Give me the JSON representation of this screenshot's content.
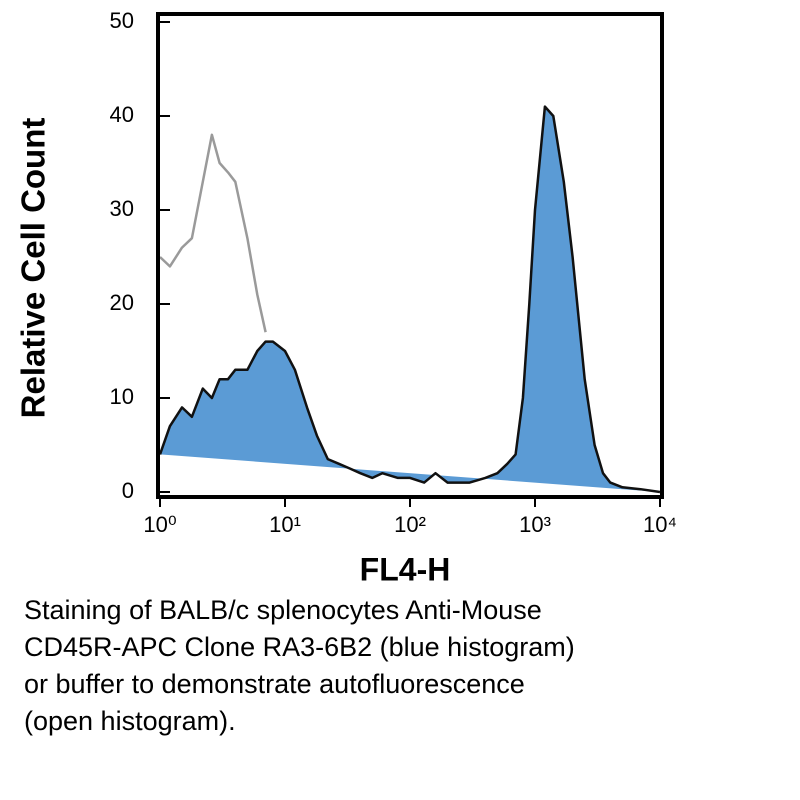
{
  "chart_data": {
    "type": "histogram-overlay",
    "xlabel": "FL4-H",
    "ylabel": "Relative Cell Count",
    "x": [
      1,
      1.2,
      1.5,
      1.8,
      2.2,
      2.6,
      3,
      3.5,
      4,
      5,
      6,
      7,
      8,
      10,
      12,
      15,
      18,
      22,
      27,
      33,
      40,
      50,
      60,
      80,
      100,
      130,
      160,
      200,
      300,
      400,
      500,
      600,
      700,
      800,
      900,
      1000,
      1200,
      1400,
      1700,
      2000,
      2500,
      3000,
      3500,
      4000,
      5000,
      7000,
      10000
    ],
    "series": [
      {
        "color": "#5b9bd5",
        "fill": true,
        "values": [
          4,
          7,
          9,
          8,
          11,
          10,
          12,
          12,
          13,
          13,
          15,
          16,
          16,
          15,
          13,
          9,
          6,
          3.5,
          3,
          2.5,
          2,
          1.5,
          2,
          1.5,
          1.5,
          1,
          2,
          1,
          1,
          1.5,
          2,
          3,
          4,
          10,
          20,
          30,
          41,
          40,
          33,
          25,
          12,
          5,
          2,
          1,
          0.5,
          0.3,
          0
        ]
      },
      {
        "color": "#9a9a9a",
        "fill": false,
        "values": [
          25,
          24,
          26,
          27,
          33,
          38,
          35,
          34,
          33,
          27,
          21,
          17,
          null,
          null,
          null,
          null,
          null,
          null,
          null,
          null,
          null,
          null,
          null,
          null,
          null,
          null,
          null,
          null,
          null,
          null,
          null,
          null,
          null,
          null,
          null,
          null,
          null,
          null,
          null,
          null,
          null,
          null,
          null,
          null,
          null,
          null,
          null
        ]
      }
    ],
    "xscale": "log",
    "xlim": [
      1,
      10000
    ],
    "xticks": [
      {
        "value": 1,
        "label": "10⁰"
      },
      {
        "value": 10,
        "label": "10¹"
      },
      {
        "value": 100,
        "label": "10²"
      },
      {
        "value": 1000,
        "label": "10³"
      },
      {
        "value": 10000,
        "label": "10⁴"
      }
    ],
    "ylim": [
      0,
      50
    ],
    "yticks": [
      0,
      10,
      20,
      30,
      40,
      50
    ],
    "caption": [
      "Staining of BALB/c splenocytes Anti-Mouse",
      "CD45R-APC Clone RA3-6B2 (blue histogram)",
      "or buffer to demonstrate autofluorescence",
      "(open histogram)."
    ]
  }
}
